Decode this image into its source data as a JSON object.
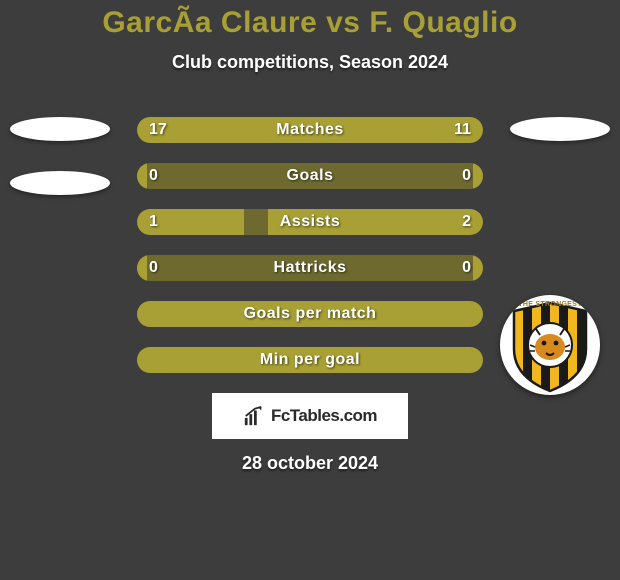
{
  "title": "GarcÃ­a Claure vs F. Quaglio",
  "subtitle": "Club competitions, Season 2024",
  "date": "28 october 2024",
  "brand": {
    "text": "FcTables.com"
  },
  "colors": {
    "bar_fill": "#a8a035",
    "bar_bg": "#6e6a2f",
    "page_bg": "#3d3d3d",
    "title_color": "#a8a035",
    "text_color": "#ffffff"
  },
  "rows": [
    {
      "label": "Matches",
      "left": "17",
      "right": "11",
      "left_pct": 61,
      "right_pct": 39,
      "type": "split"
    },
    {
      "label": "Goals",
      "left": "0",
      "right": "0",
      "left_pct": 3,
      "right_pct": 3,
      "type": "split"
    },
    {
      "label": "Assists",
      "left": "1",
      "right": "2",
      "left_pct": 31,
      "right_pct": 62,
      "type": "split"
    },
    {
      "label": "Hattricks",
      "left": "0",
      "right": "0",
      "left_pct": 3,
      "right_pct": 3,
      "type": "split"
    },
    {
      "label": "Goals per match",
      "left": "",
      "right": "",
      "left_pct": 0,
      "right_pct": 0,
      "type": "full"
    },
    {
      "label": "Min per goal",
      "left": "",
      "right": "",
      "left_pct": 0,
      "right_pct": 0,
      "type": "full"
    }
  ],
  "crest": {
    "label": "THE STRONGEST",
    "stripe_colors": [
      "#1a1a1a",
      "#f2b71f"
    ],
    "tiger_color": "#d98a1f",
    "outline_color": "#1a1a1a"
  }
}
